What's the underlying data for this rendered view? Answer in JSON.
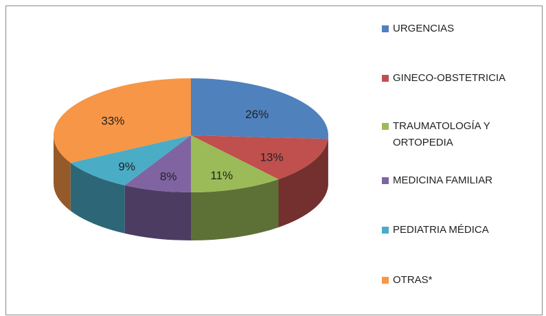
{
  "chart_data": {
    "type": "pie",
    "categories": [
      "URGENCIAS",
      "GINECO-OBSTETRICIA",
      "TRAUMATOLOGÍA Y ORTOPEDIA",
      "MEDICINA FAMILIAR",
      "PEDIATRIA MÉDICA",
      "OTRAS*"
    ],
    "values": [
      26,
      13,
      11,
      8,
      9,
      33
    ],
    "value_labels": [
      "26%",
      "13%",
      "11%",
      "8%",
      "9%",
      "33%"
    ],
    "colors": [
      "#4f81bd",
      "#c0504d",
      "#9bbb59",
      "#8064a2",
      "#4bacc6",
      "#f79646"
    ],
    "legend": "right"
  }
}
